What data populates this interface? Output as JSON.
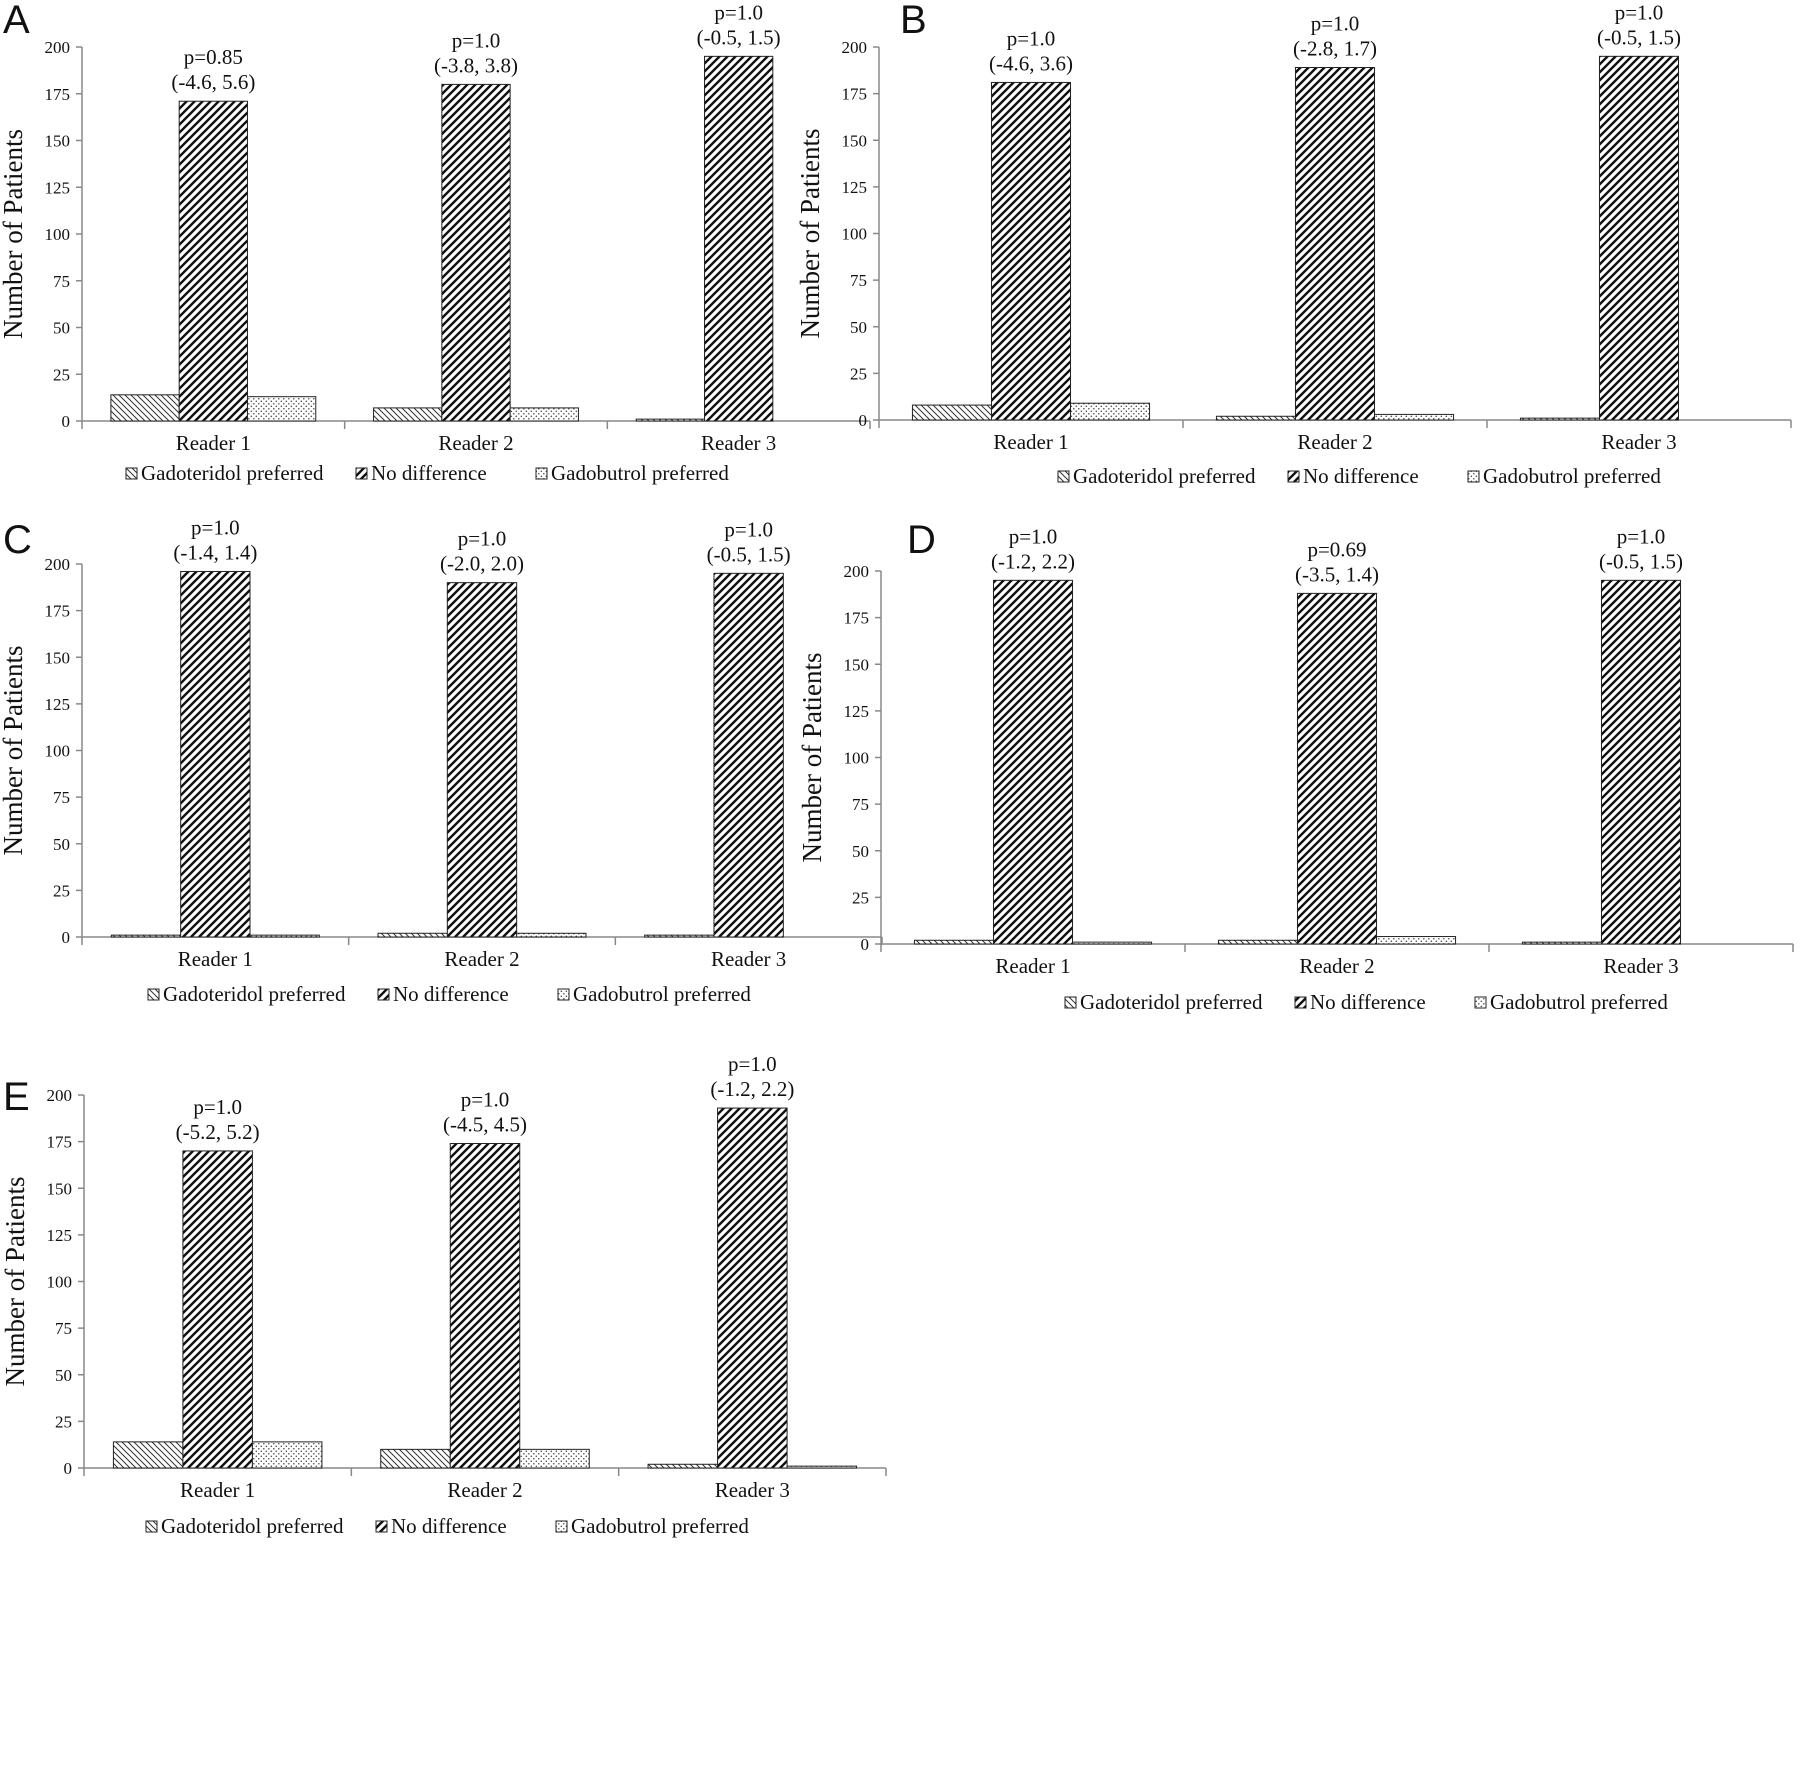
{
  "legend_labels": [
    "Gadoteridol preferred",
    "No difference",
    "Gadobutrol preferred"
  ],
  "chart_data": [
    {
      "panel": "A",
      "type": "bar",
      "categories": [
        "Reader 1",
        "Reader 2",
        "Reader 3"
      ],
      "series": [
        {
          "name": "Gadoteridol preferred",
          "values": [
            14,
            7,
            1
          ]
        },
        {
          "name": "No difference",
          "values": [
            171,
            180,
            195
          ]
        },
        {
          "name": "Gadobutrol preferred",
          "values": [
            13,
            7,
            0
          ]
        }
      ],
      "annotations": [
        {
          "p": "p=0.85",
          "ci": "(-4.6, 5.6)"
        },
        {
          "p": "p=1.0",
          "ci": "(-3.8, 3.8)"
        },
        {
          "p": "p=1.0",
          "ci": "(-0.5, 1.5)"
        }
      ],
      "ylabel": "Number of Patients",
      "ylim": [
        0,
        200
      ],
      "yticks": [
        0,
        25,
        50,
        75,
        100,
        125,
        150,
        175,
        200
      ],
      "legend_position": "bottom"
    },
    {
      "panel": "B",
      "type": "bar",
      "categories": [
        "Reader 1",
        "Reader 2",
        "Reader 3"
      ],
      "series": [
        {
          "name": "Gadoteridol preferred",
          "values": [
            8,
            2,
            1
          ]
        },
        {
          "name": "No difference",
          "values": [
            181,
            189,
            195
          ]
        },
        {
          "name": "Gadobutrol preferred",
          "values": [
            9,
            3,
            0
          ]
        }
      ],
      "annotations": [
        {
          "p": "p=1.0",
          "ci": "(-4.6, 3.6)"
        },
        {
          "p": "p=1.0",
          "ci": "(-2.8, 1.7)"
        },
        {
          "p": "p=1.0",
          "ci": "(-0.5, 1.5)"
        }
      ],
      "ylabel": "Number of Patients",
      "ylim": [
        0,
        200
      ],
      "yticks": [
        0,
        25,
        50,
        75,
        100,
        125,
        150,
        175,
        200
      ],
      "legend_position": "bottom"
    },
    {
      "panel": "C",
      "type": "bar",
      "categories": [
        "Reader 1",
        "Reader 2",
        "Reader 3"
      ],
      "series": [
        {
          "name": "Gadoteridol preferred",
          "values": [
            1,
            2,
            1
          ]
        },
        {
          "name": "No difference",
          "values": [
            196,
            190,
            195
          ]
        },
        {
          "name": "Gadobutrol preferred",
          "values": [
            1,
            2,
            0
          ]
        }
      ],
      "annotations": [
        {
          "p": "p=1.0",
          "ci": "(-1.4, 1.4)"
        },
        {
          "p": "p=1.0",
          "ci": "(-2.0, 2.0)"
        },
        {
          "p": "p=1.0",
          "ci": "(-0.5, 1.5)"
        }
      ],
      "ylabel": "Number of Patients",
      "ylim": [
        0,
        200
      ],
      "yticks": [
        0,
        25,
        50,
        75,
        100,
        125,
        150,
        175,
        200
      ],
      "legend_position": "bottom"
    },
    {
      "panel": "D",
      "type": "bar",
      "categories": [
        "Reader 1",
        "Reader 2",
        "Reader 3"
      ],
      "series": [
        {
          "name": "Gadoteridol preferred",
          "values": [
            2,
            2,
            1
          ]
        },
        {
          "name": "No difference",
          "values": [
            195,
            188,
            195
          ]
        },
        {
          "name": "Gadobutrol preferred",
          "values": [
            1,
            4,
            0
          ]
        }
      ],
      "annotations": [
        {
          "p": "p=1.0",
          "ci": "(-1.2, 2.2)"
        },
        {
          "p": "p=0.69",
          "ci": "(-3.5, 1.4)"
        },
        {
          "p": "p=1.0",
          "ci": "(-0.5, 1.5)"
        }
      ],
      "ylabel": "Number of Patients",
      "ylim": [
        0,
        200
      ],
      "yticks": [
        0,
        25,
        50,
        75,
        100,
        125,
        150,
        175,
        200
      ],
      "legend_position": "bottom"
    },
    {
      "panel": "E",
      "type": "bar",
      "categories": [
        "Reader 1",
        "Reader 2",
        "Reader 3"
      ],
      "series": [
        {
          "name": "Gadoteridol preferred",
          "values": [
            14,
            10,
            2
          ]
        },
        {
          "name": "No difference",
          "values": [
            170,
            174,
            193
          ]
        },
        {
          "name": "Gadobutrol preferred",
          "values": [
            14,
            10,
            1
          ]
        }
      ],
      "annotations": [
        {
          "p": "p=1.0",
          "ci": "(-5.2, 5.2)"
        },
        {
          "p": "p=1.0",
          "ci": "(-4.5, 4.5)"
        },
        {
          "p": "p=1.0",
          "ci": "(-1.2, 2.2)"
        }
      ],
      "ylabel": "Number of Patients",
      "ylim": [
        0,
        200
      ],
      "yticks": [
        0,
        25,
        50,
        75,
        100,
        125,
        150,
        175,
        200
      ],
      "legend_position": "bottom"
    }
  ]
}
